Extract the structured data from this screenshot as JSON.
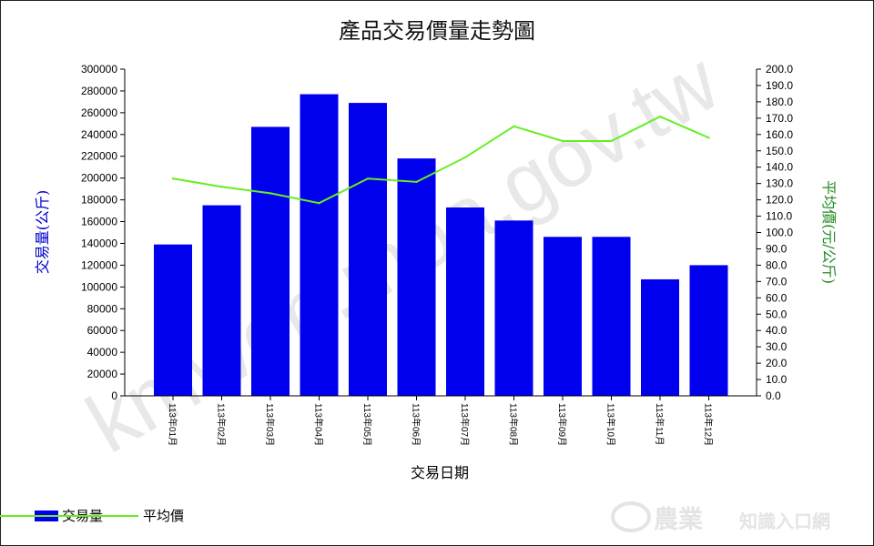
{
  "watermark": "kmweb.moa.gov.tw",
  "logo": {
    "main": "農業",
    "sub": "知識入口網"
  },
  "colors": {
    "bar": "#0000ee",
    "line": "#66ee22",
    "left_axis_label": "#0000cc",
    "right_axis_label": "#228b22"
  },
  "legend": {
    "bar_label": "交易量",
    "line_label": "平均價"
  },
  "chart_data": {
    "type": "bar",
    "title": "產品交易價量走勢圖",
    "xlabel": "交易日期",
    "ylabel": "交易量(公斤)",
    "y2label": "平均價(元/公斤)",
    "categories": [
      "113年01月",
      "113年02月",
      "113年03月",
      "113年04月",
      "113年05月",
      "113年06月",
      "113年07月",
      "113年08月",
      "113年09月",
      "113年10月",
      "113年11月",
      "113年12月"
    ],
    "ylim": [
      0,
      300000
    ],
    "y2lim": [
      0,
      200
    ],
    "yticks": [
      "0",
      "20000",
      "40000",
      "60000",
      "80000",
      "100000",
      "120000",
      "140000",
      "160000",
      "180000",
      "200000",
      "220000",
      "240000",
      "260000",
      "280000",
      "300000"
    ],
    "y2ticks": [
      "0.0",
      "10.0",
      "20.0",
      "30.0",
      "40.0",
      "50.0",
      "60.0",
      "70.0",
      "80.0",
      "90.0",
      "100.0",
      "110.0",
      "120.0",
      "130.0",
      "140.0",
      "150.0",
      "160.0",
      "170.0",
      "180.0",
      "190.0",
      "200.0"
    ],
    "series": [
      {
        "name": "交易量",
        "type": "bar",
        "axis": "left",
        "values": [
          139000,
          175000,
          247000,
          277000,
          269000,
          218000,
          173000,
          161000,
          146000,
          146000,
          107000,
          120000
        ]
      },
      {
        "name": "平均價",
        "type": "line",
        "axis": "right",
        "values": [
          133,
          128,
          124,
          118,
          133,
          131,
          146,
          165,
          156,
          156,
          171,
          158
        ]
      }
    ],
    "grid": false,
    "legend_position": "bottom-left"
  }
}
